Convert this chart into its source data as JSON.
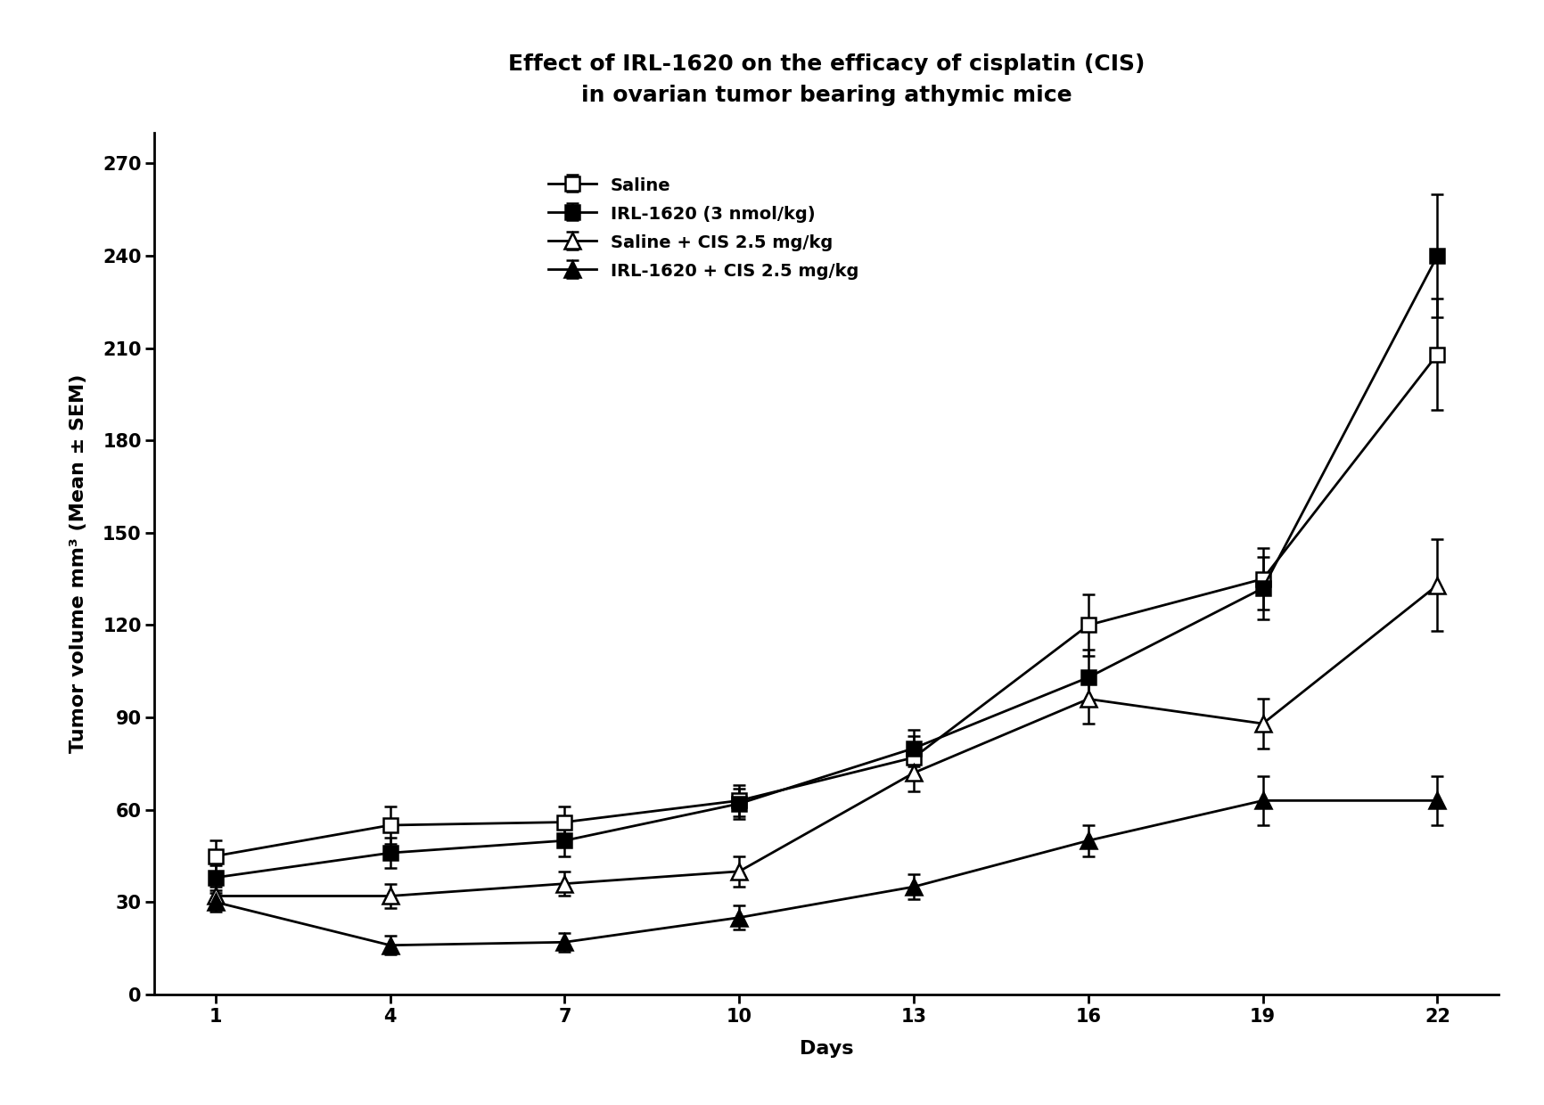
{
  "title_line1": "Effect of IRL-1620 on the efficacy of cisplatin (CIS)",
  "title_line2": "in ovarian tumor bearing athymic mice",
  "xlabel": "Days",
  "ylabel": "Tumor volume mm³ (Mean ± SEM)",
  "days": [
    1,
    4,
    7,
    10,
    13,
    16,
    19,
    22
  ],
  "saline": {
    "y": [
      45,
      55,
      56,
      63,
      77,
      120,
      135,
      208
    ],
    "yerr": [
      5,
      6,
      5,
      5,
      7,
      10,
      10,
      18
    ],
    "label": "Saline"
  },
  "irl1620": {
    "y": [
      38,
      46,
      50,
      62,
      80,
      103,
      132,
      240
    ],
    "yerr": [
      4,
      5,
      5,
      5,
      6,
      9,
      10,
      20
    ],
    "label": "IRL-1620 (3 nmol/kg)"
  },
  "saline_cis": {
    "y": [
      32,
      32,
      36,
      40,
      72,
      96,
      88,
      133
    ],
    "yerr": [
      3,
      4,
      4,
      5,
      6,
      8,
      8,
      15
    ],
    "label": "Saline + CIS 2.5 mg/kg"
  },
  "irl1620_cis": {
    "y": [
      30,
      16,
      17,
      25,
      35,
      50,
      63,
      63
    ],
    "yerr": [
      3,
      3,
      3,
      4,
      4,
      5,
      8,
      8
    ],
    "label": "IRL-1620 + CIS 2.5 mg/kg"
  },
  "ylim": [
    0,
    280
  ],
  "yticks": [
    0,
    30,
    60,
    90,
    120,
    150,
    180,
    210,
    240,
    270
  ],
  "xticks": [
    1,
    4,
    7,
    10,
    13,
    16,
    19,
    22
  ],
  "title_fontsize": 18,
  "label_fontsize": 16,
  "tick_fontsize": 15,
  "legend_fontsize": 14,
  "figsize": [
    17.33,
    12.4
  ],
  "dpi": 100
}
